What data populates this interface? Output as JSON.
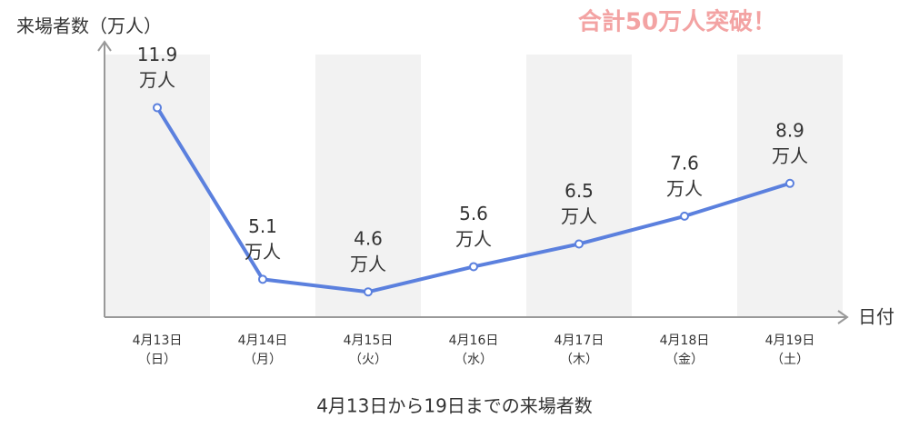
{
  "chart_data": {
    "type": "line",
    "y_axis_label": "来場者数（万人）",
    "x_axis_label": "日付",
    "annotation": "合計50万人突破！",
    "caption": "4月13日から19日までの来場者数",
    "categories": [
      "4月13日",
      "4月14日",
      "4月15日",
      "4月16日",
      "4月17日",
      "4月18日",
      "4月19日"
    ],
    "category_sublabels": [
      "（日）",
      "（月）",
      "（火）",
      "（水）",
      "（木）",
      "（金）",
      "（土）"
    ],
    "values": [
      11.9,
      5.1,
      4.6,
      5.6,
      6.5,
      7.6,
      8.9
    ],
    "value_unit": "万人",
    "color": "#5b80de",
    "ylim": [
      3.6,
      14.4
    ],
    "band_shading": true
  }
}
